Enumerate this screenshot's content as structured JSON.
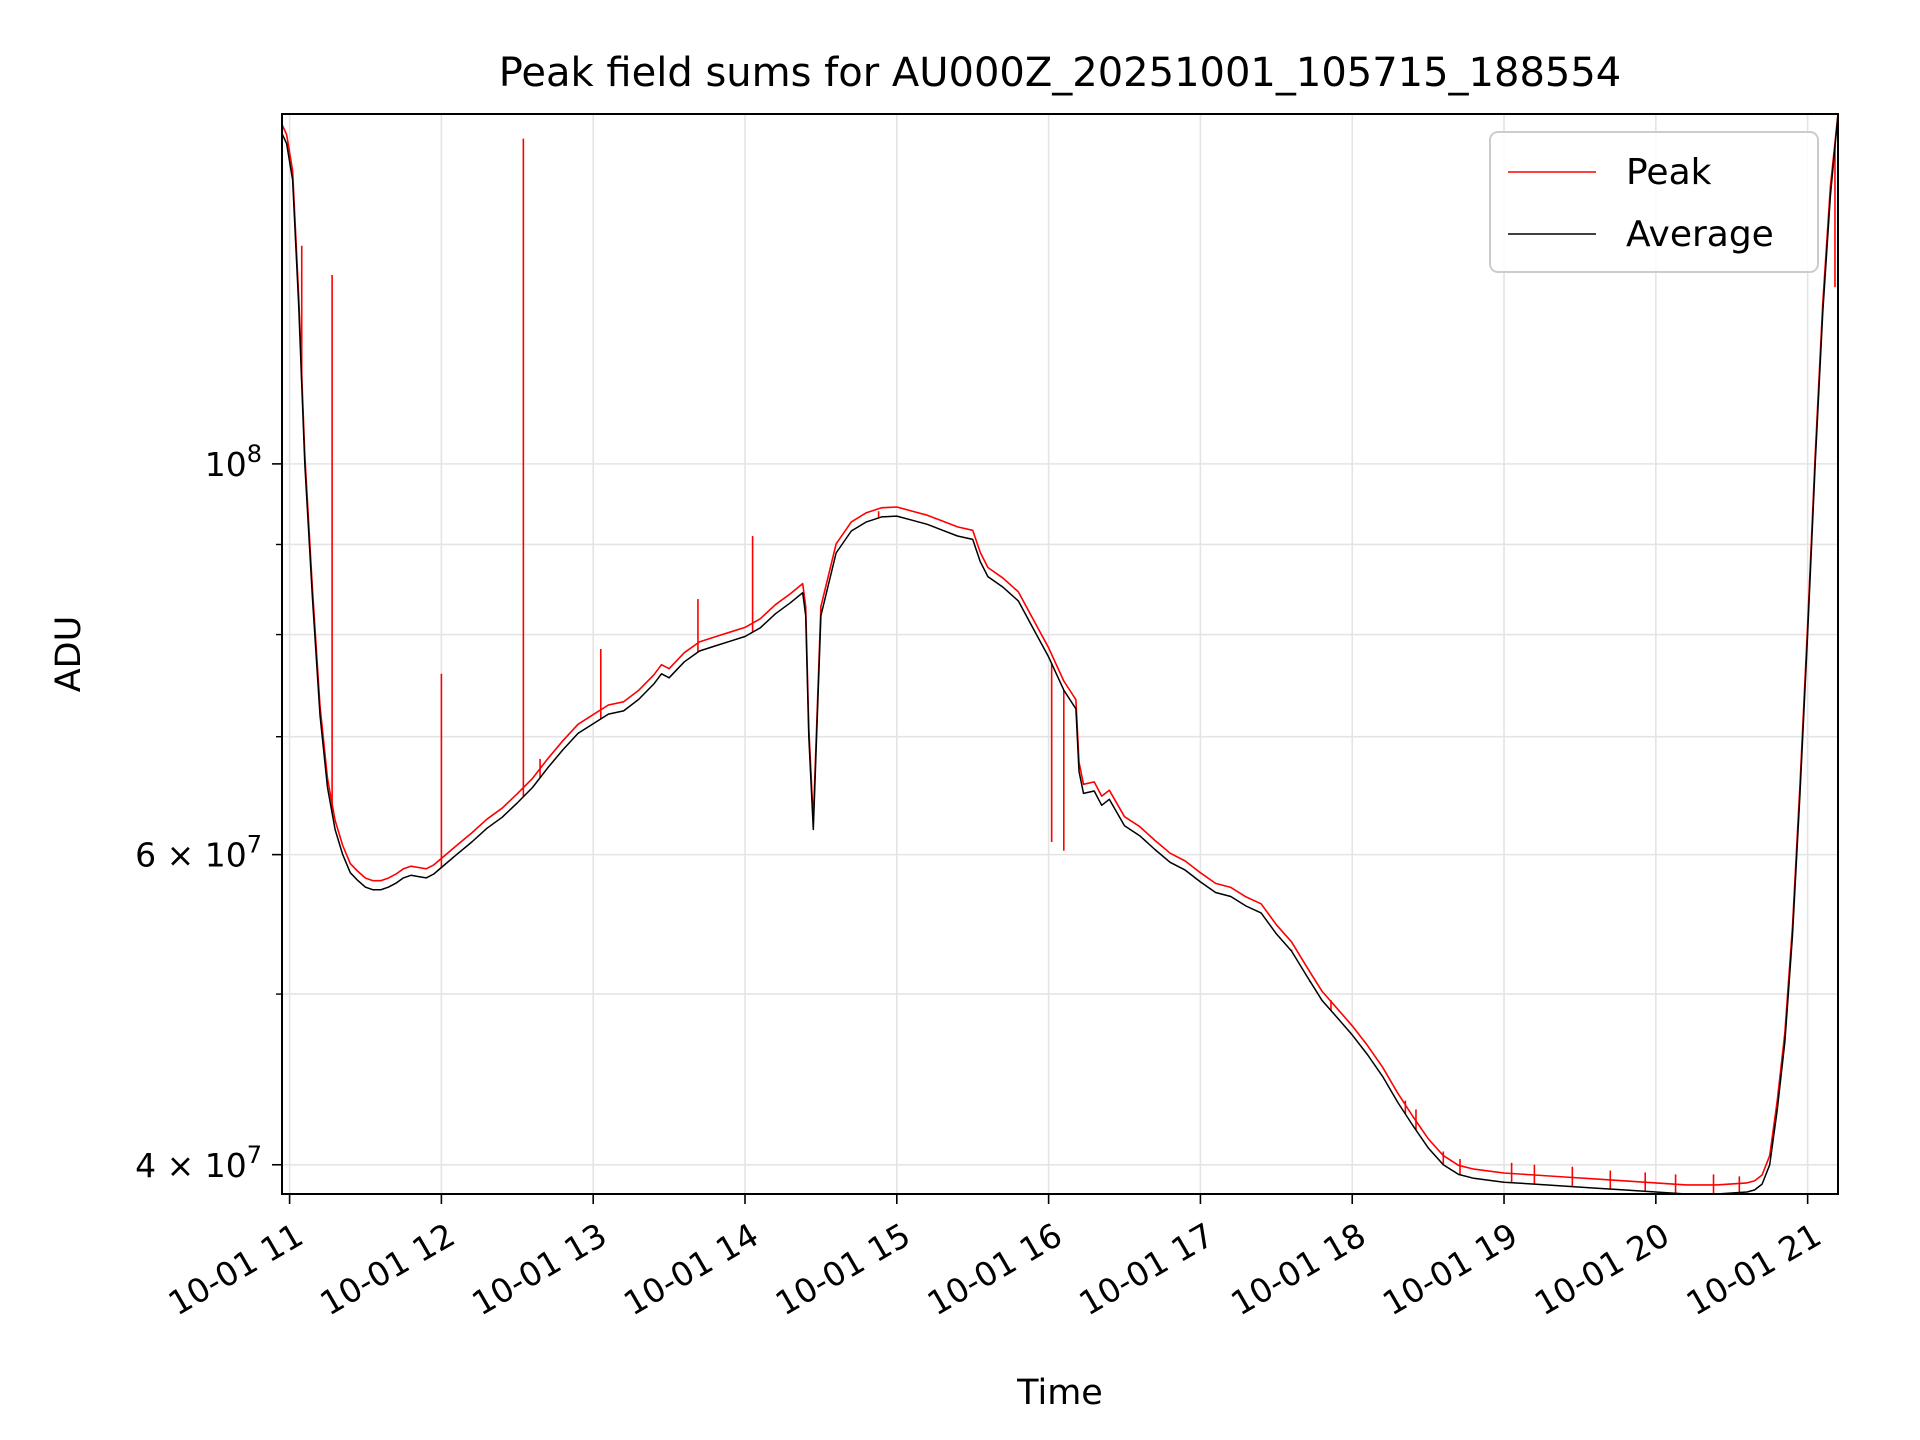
{
  "chart_data": {
    "type": "line",
    "title": "Peak field sums for AU000Z_20251001_105715_188554",
    "xlabel": "Time",
    "ylabel": "ADU",
    "xscale": "time-hours",
    "xlim": [
      10.95,
      21.2
    ],
    "yscale": "log",
    "ylim": [
      38500000,
      158000000
    ],
    "grid": true,
    "x_ticks": [
      {
        "value": 11,
        "label": "10-01 11"
      },
      {
        "value": 12,
        "label": "10-01 12"
      },
      {
        "value": 13,
        "label": "10-01 13"
      },
      {
        "value": 14,
        "label": "10-01 14"
      },
      {
        "value": 15,
        "label": "10-01 15"
      },
      {
        "value": 16,
        "label": "10-01 16"
      },
      {
        "value": 17,
        "label": "10-01 17"
      },
      {
        "value": 18,
        "label": "10-01 18"
      },
      {
        "value": 19,
        "label": "10-01 19"
      },
      {
        "value": 20,
        "label": "10-01 20"
      },
      {
        "value": 21,
        "label": "10-01 21"
      }
    ],
    "y_major_ticks": [
      {
        "value": 40000000,
        "base": "4",
        "exp": "7",
        "label": "4 × 10^7"
      },
      {
        "value": 60000000,
        "base": "6",
        "exp": "7",
        "label": "6 × 10^7"
      },
      {
        "value": 100000000,
        "base": "",
        "exp": "8",
        "label": "10^8"
      }
    ],
    "y_minor_grid": [
      50000000,
      70000000,
      80000000,
      90000000
    ],
    "legend": {
      "position": "top-right",
      "entries": [
        {
          "name": "Peak",
          "color": "#ff0000"
        },
        {
          "name": "Average",
          "color": "#000000"
        }
      ]
    },
    "series": [
      {
        "name": "Average",
        "color": "#000000",
        "x": [
          10.95,
          10.98,
          11.02,
          11.06,
          11.1,
          11.15,
          11.2,
          11.25,
          11.3,
          11.35,
          11.4,
          11.45,
          11.5,
          11.55,
          11.6,
          11.65,
          11.7,
          11.75,
          11.8,
          11.85,
          11.9,
          11.95,
          12.0,
          12.1,
          12.2,
          12.3,
          12.4,
          12.5,
          12.6,
          12.7,
          12.8,
          12.9,
          13.0,
          13.1,
          13.2,
          13.3,
          13.4,
          13.45,
          13.5,
          13.6,
          13.7,
          13.8,
          13.9,
          14.0,
          14.1,
          14.2,
          14.3,
          14.38,
          14.4,
          14.42,
          14.45,
          14.5,
          14.6,
          14.7,
          14.8,
          14.9,
          15.0,
          15.1,
          15.2,
          15.3,
          15.4,
          15.5,
          15.55,
          15.6,
          15.7,
          15.8,
          15.9,
          16.0,
          16.1,
          16.18,
          16.2,
          16.23,
          16.3,
          16.35,
          16.4,
          16.5,
          16.6,
          16.7,
          16.8,
          16.9,
          17.0,
          17.1,
          17.2,
          17.3,
          17.4,
          17.5,
          17.6,
          17.7,
          17.8,
          17.9,
          18.0,
          18.1,
          18.2,
          18.3,
          18.4,
          18.5,
          18.6,
          18.7,
          18.8,
          18.9,
          19.0,
          19.2,
          19.4,
          19.6,
          19.8,
          20.0,
          20.2,
          20.4,
          20.6,
          20.65,
          20.7,
          20.75,
          20.8,
          20.85,
          20.9,
          20.95,
          21.0,
          21.05,
          21.1,
          21.15,
          21.2
        ],
        "values": [
          154000000,
          152000000,
          145000000,
          123000000,
          100000000,
          84000000,
          72000000,
          65500000,
          62000000,
          60000000,
          58600000,
          58000000,
          57500000,
          57300000,
          57300000,
          57500000,
          57800000,
          58200000,
          58400000,
          58300000,
          58200000,
          58500000,
          59000000,
          60000000,
          61000000,
          62100000,
          63000000,
          64200000,
          65500000,
          67200000,
          68800000,
          70300000,
          71200000,
          72100000,
          72400000,
          73500000,
          75000000,
          76000000,
          75600000,
          77200000,
          78300000,
          78800000,
          79300000,
          79800000,
          80700000,
          82200000,
          83400000,
          84500000,
          82000000,
          70000000,
          62000000,
          82000000,
          89000000,
          91600000,
          92700000,
          93300000,
          93400000,
          92900000,
          92400000,
          91700000,
          91000000,
          90600000,
          88000000,
          86300000,
          85100000,
          83600000,
          80600000,
          77700000,
          74400000,
          72600000,
          66900000,
          65000000,
          65200000,
          64000000,
          64500000,
          62300000,
          61500000,
          60400000,
          59400000,
          58800000,
          57900000,
          57100000,
          56800000,
          56100000,
          55600000,
          54100000,
          52900000,
          51200000,
          49600000,
          48500000,
          47400000,
          46200000,
          44900000,
          43400000,
          42100000,
          40900000,
          40000000,
          39500000,
          39300000,
          39200000,
          39100000,
          39000000,
          38900000,
          38800000,
          38700000,
          38600000,
          38500000,
          38500000,
          38600000,
          38700000,
          39000000,
          40000000,
          43000000,
          47000000,
          54000000,
          65000000,
          80000000,
          100000000,
          122000000,
          142000000,
          158000000
        ]
      },
      {
        "name": "Peak",
        "color": "#ff0000",
        "offset_ratio": 1.012,
        "spikes": [
          {
            "x": 11.08,
            "y": 133000000
          },
          {
            "x": 11.28,
            "y": 128000000
          },
          {
            "x": 12.0,
            "y": 76000000
          },
          {
            "x": 12.54,
            "y": 153000000
          },
          {
            "x": 12.65,
            "y": 68000000
          },
          {
            "x": 13.05,
            "y": 78500000
          },
          {
            "x": 13.69,
            "y": 83800000
          },
          {
            "x": 14.05,
            "y": 91000000
          },
          {
            "x": 14.88,
            "y": 94000000
          },
          {
            "x": 16.02,
            "y": 61000000
          },
          {
            "x": 16.1,
            "y": 60300000
          },
          {
            "x": 17.6,
            "y": 53000000
          },
          {
            "x": 17.72,
            "y": 50800000
          },
          {
            "x": 17.86,
            "y": 49600000
          },
          {
            "x": 18.35,
            "y": 43500000
          },
          {
            "x": 18.42,
            "y": 43000000
          },
          {
            "x": 18.6,
            "y": 40700000
          },
          {
            "x": 18.71,
            "y": 40300000
          },
          {
            "x": 19.05,
            "y": 40100000
          },
          {
            "x": 19.2,
            "y": 40000000
          },
          {
            "x": 19.45,
            "y": 39900000
          },
          {
            "x": 19.7,
            "y": 39700000
          },
          {
            "x": 19.93,
            "y": 39600000
          },
          {
            "x": 20.13,
            "y": 39500000
          },
          {
            "x": 20.38,
            "y": 39500000
          },
          {
            "x": 20.55,
            "y": 39400000
          },
          {
            "x": 21.18,
            "y": 126000000
          }
        ]
      }
    ]
  }
}
